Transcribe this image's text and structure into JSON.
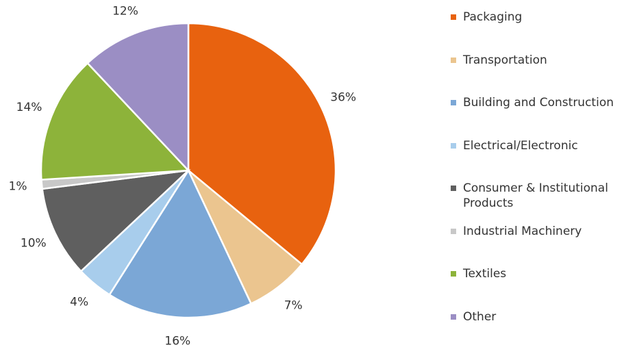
{
  "chart_data": {
    "type": "pie",
    "categories": [
      "Packaging",
      "Transportation",
      "Building and Construction",
      "Electrical/Electronic",
      "Consumer & Institutional Products",
      "Industrial Machinery",
      "Textiles",
      "Other"
    ],
    "values": [
      36,
      7,
      16,
      4,
      10,
      1,
      14,
      12
    ],
    "value_labels": [
      "36%",
      "7%",
      "16%",
      "4%",
      "10%",
      "1%",
      "14%",
      "12%"
    ],
    "colors": [
      "#e8620f",
      "#ebc58f",
      "#7ba7d6",
      "#a8cdec",
      "#5f5f5f",
      "#c8c8c8",
      "#8db33a",
      "#9b8ec4"
    ],
    "legend": "right"
  }
}
